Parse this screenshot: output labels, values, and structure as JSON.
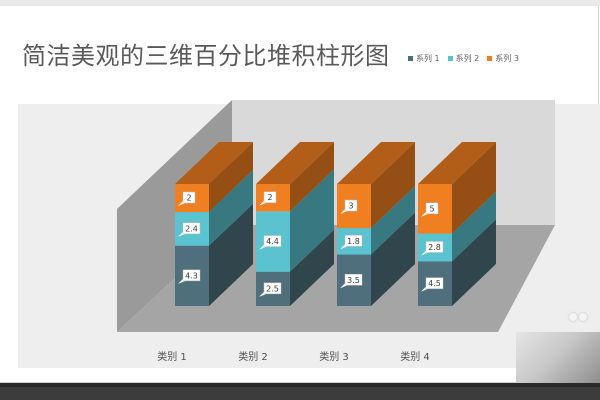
{
  "chart_data": {
    "type": "bar",
    "stacked": true,
    "three_d": true,
    "title": "简洁美观的三维百分比堆积柱形图",
    "categories": [
      "类别 1",
      "类别 2",
      "类别 3",
      "类别 4"
    ],
    "series": [
      {
        "name": "系列 1",
        "values": [
          4.3,
          2.5,
          3.5,
          4.5
        ],
        "color": "#4f6f7c"
      },
      {
        "name": "系列 2",
        "values": [
          2.4,
          4.4,
          1.8,
          2.8
        ],
        "color": "#5bc2cf"
      },
      {
        "name": "系列 3",
        "values": [
          2,
          2,
          3,
          5
        ],
        "color": "#f07f21"
      }
    ],
    "data_labels": [
      [
        "4.3",
        "2.5",
        "3.5",
        "4.5"
      ],
      [
        "2.4",
        "4.4",
        "1.8",
        "2.8"
      ],
      [
        "2",
        "2",
        "3",
        "5"
      ]
    ],
    "ylim": [
      0,
      100
    ],
    "unit": "percent",
    "legend_position": "top-right",
    "grid": false,
    "colors": {
      "back_wall": "#d8d8d8",
      "side_wall": "#9b9b9b",
      "floor": "#a3a3a3",
      "plot_bg": "#eeeeee"
    }
  }
}
